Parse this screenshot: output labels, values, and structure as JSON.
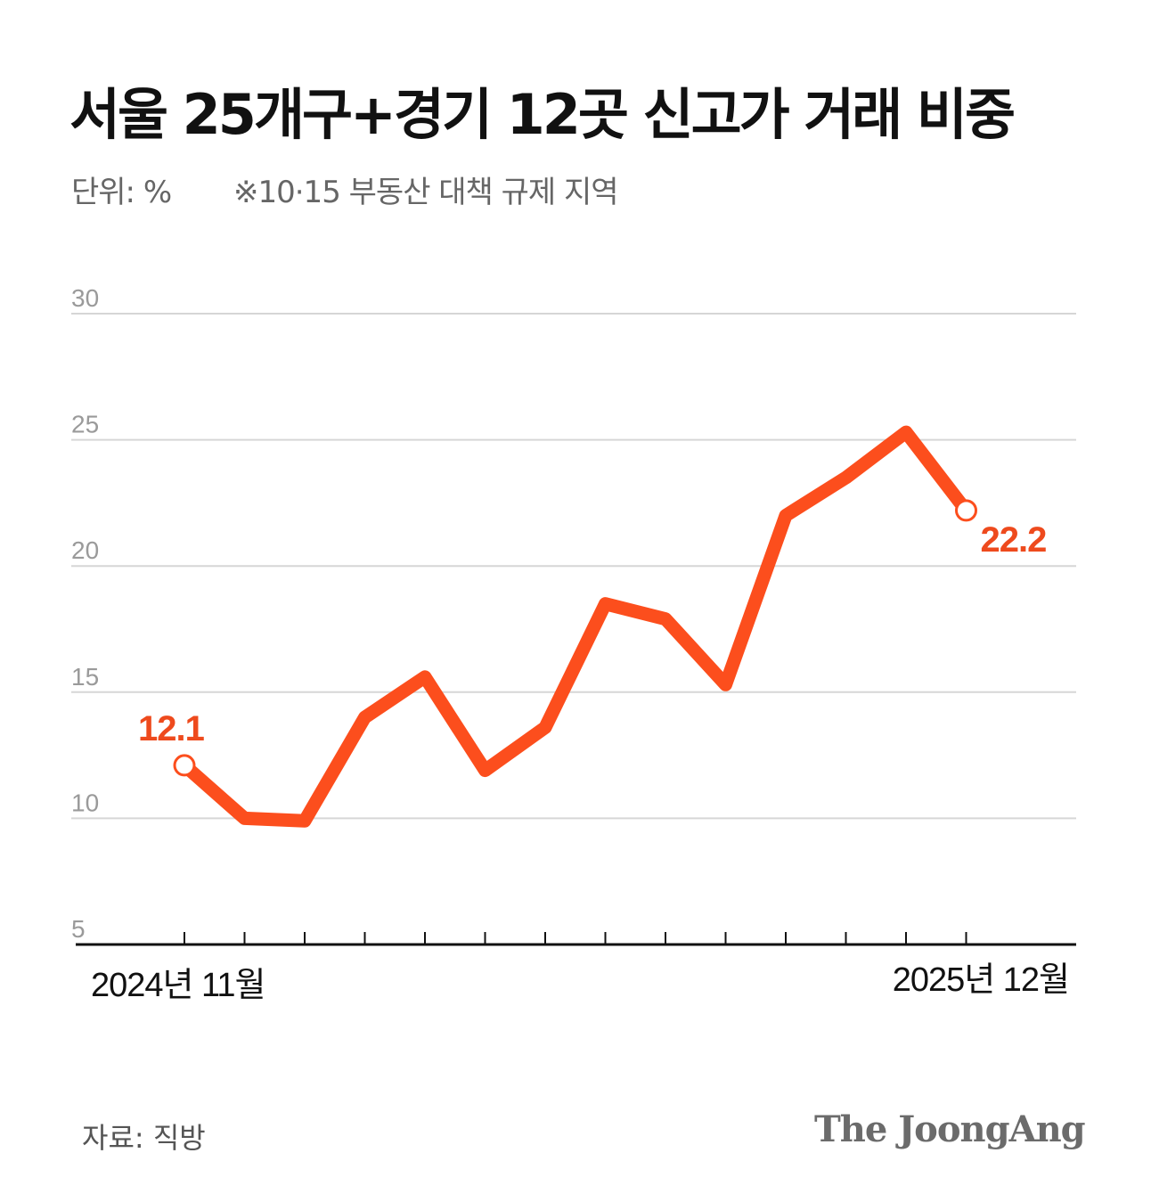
{
  "header": {
    "title": "서울 25개구+경기 12곳 신고가 거래 비중",
    "unit": "단위: %",
    "note": "※10·15 부동산 대책 규제 지역"
  },
  "footer": {
    "source": "자료: 직방",
    "brand": "The JoongAng"
  },
  "colors": {
    "line": "#FC4E1D",
    "label": "#EE4A1D",
    "grid": "#d6d6d6",
    "axis": "#111111",
    "tick_label": "#9a9a9a"
  },
  "chart_data": {
    "type": "line",
    "title": "서울 25개구+경기 12곳 신고가 거래 비중",
    "ylabel": "단위: %",
    "ylim": [
      5,
      30
    ],
    "yticks": [
      5,
      10,
      15,
      20,
      25,
      30
    ],
    "grid": true,
    "x_labels": {
      "first": "2024년 11월",
      "last": "2025년 12월"
    },
    "series": [
      {
        "name": "신고가 거래 비중",
        "values": [
          12.1,
          10.0,
          9.9,
          14.0,
          15.6,
          11.9,
          13.6,
          18.5,
          17.9,
          15.3,
          22.0,
          23.5,
          25.3,
          22.2
        ]
      }
    ],
    "annotations": [
      {
        "index": 0,
        "text": "12.1"
      },
      {
        "index": 13,
        "text": "22.2"
      }
    ]
  }
}
